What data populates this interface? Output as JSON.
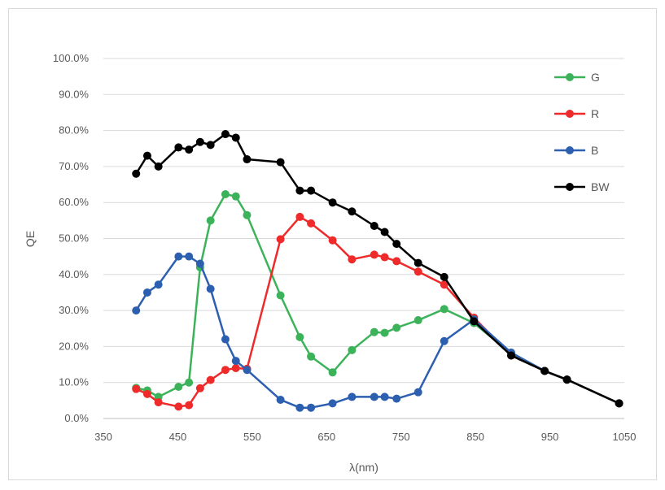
{
  "chart_data": {
    "type": "line",
    "title": "",
    "xlabel": "λ(nm)",
    "ylabel": "QE",
    "xlim": [
      350,
      1050
    ],
    "ylim": [
      0,
      100
    ],
    "x_ticks": [
      "350",
      "450",
      "550",
      "650",
      "750",
      "850",
      "950",
      "1050"
    ],
    "y_ticks": [
      "0.0%",
      "10.0%",
      "20.0%",
      "30.0%",
      "40.0%",
      "50.0%",
      "60.0%",
      "70.0%",
      "80.0%",
      "90.0%",
      "100.0%"
    ],
    "grid": "horizontal",
    "legend_position": "right",
    "x": [
      394,
      409,
      424,
      451,
      465,
      480,
      494,
      514,
      528,
      543,
      588,
      614,
      629,
      658,
      684,
      714,
      728,
      744,
      773,
      808,
      848,
      898,
      943,
      973,
      1043
    ],
    "series": [
      {
        "name": "G",
        "color": "#3cb35a",
        "values": [
          8.5,
          7.8,
          6,
          8.8,
          10,
          42,
          55,
          62.3,
          61.7,
          56.5,
          34.2,
          22.6,
          17.2,
          12.8,
          19,
          24,
          23.8,
          25.2,
          27.3,
          30.4,
          26.5,
          18,
          13.2,
          10.8,
          4.2
        ]
      },
      {
        "name": "R",
        "color": "#ee2a2a",
        "values": [
          8.2,
          6.8,
          4.5,
          3.3,
          3.7,
          8.4,
          10.7,
          13.5,
          14,
          13.8,
          49.8,
          56,
          54.2,
          49.5,
          44.2,
          45.5,
          44.8,
          43.7,
          40.8,
          37.2,
          28,
          17.5,
          13.2,
          10.8,
          4.2
        ]
      },
      {
        "name": "B",
        "color": "#2d5fb0",
        "values": [
          30,
          35,
          37.2,
          45,
          45,
          43,
          36,
          22,
          16,
          13.5,
          5.2,
          3,
          3,
          4.2,
          6,
          6,
          6,
          5.5,
          7.3,
          21.5,
          27.5,
          18.3,
          13.2,
          10.8,
          4.2
        ]
      },
      {
        "name": "BW",
        "color": "#000000",
        "values": [
          68,
          73,
          70,
          75.3,
          74.7,
          76.8,
          76,
          79,
          78,
          72,
          71.2,
          63.3,
          63.3,
          60,
          57.5,
          53.5,
          51.8,
          48.5,
          43.2,
          39.3,
          27,
          17.5,
          13.2,
          10.8,
          4.2
        ]
      }
    ]
  }
}
